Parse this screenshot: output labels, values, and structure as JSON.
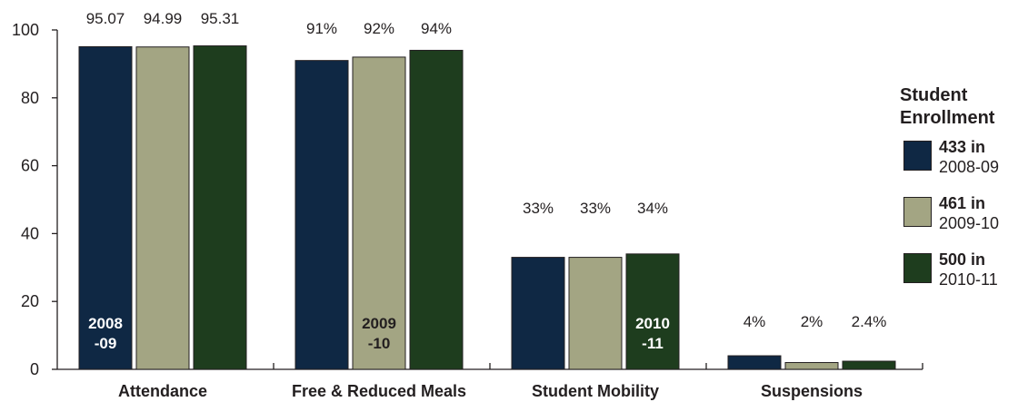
{
  "chart_data": {
    "type": "bar",
    "categories": [
      "Attendance",
      "Free & Reduced Meals",
      "Student Mobility",
      "Suspensions"
    ],
    "series": [
      {
        "name": "2008-09",
        "values": [
          95.07,
          91,
          33,
          4
        ],
        "color": "#0f2844"
      },
      {
        "name": "2009-10",
        "values": [
          94.99,
          92,
          33,
          2
        ],
        "color": "#a3a583"
      },
      {
        "name": "2010-11",
        "values": [
          95.31,
          94,
          34,
          2.4
        ],
        "color": "#1e3d1e"
      }
    ],
    "value_labels": [
      [
        "95.07",
        "91%",
        "33%",
        "4%"
      ],
      [
        "94.99",
        "92%",
        "33%",
        "2%"
      ],
      [
        "95.31",
        "94%",
        "34%",
        "2.4%"
      ]
    ],
    "in_bar_labels": [
      {
        "category_index": 0,
        "series_index": 0,
        "lines": [
          "2008",
          "-09"
        ],
        "color": "#ffffff"
      },
      {
        "category_index": 1,
        "series_index": 1,
        "lines": [
          "2009",
          "-10"
        ],
        "color": "#231f20"
      },
      {
        "category_index": 2,
        "series_index": 2,
        "lines": [
          "2010",
          "-11"
        ],
        "color": "#ffffff"
      }
    ],
    "y_ticks": [
      "0",
      "20",
      "40",
      "60",
      "80",
      "100"
    ],
    "ylim": [
      0,
      100
    ],
    "title": "",
    "xlabel": "",
    "ylabel": "",
    "grid": false,
    "legend_position": "right"
  },
  "legend": {
    "title_lines": [
      "Student",
      "Enrollment"
    ],
    "items": [
      {
        "count": "433 in",
        "year": "2008-09",
        "color": "#0f2844"
      },
      {
        "count": "461 in",
        "year": "2009-10",
        "color": "#a3a583"
      },
      {
        "count": "500 in",
        "year": "2010-11",
        "color": "#1e3d1e"
      }
    ]
  }
}
